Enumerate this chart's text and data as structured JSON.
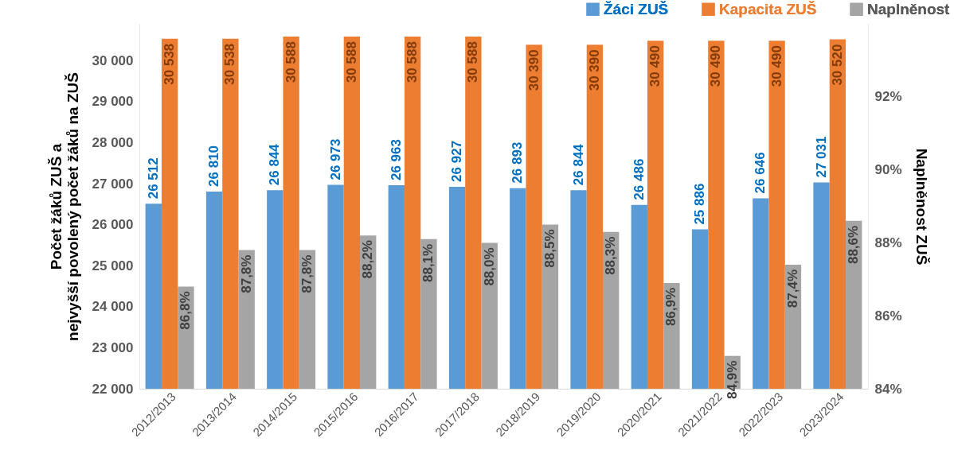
{
  "chart_data": {
    "type": "bar",
    "categories": [
      "2012/2013",
      "2013/2014",
      "2014/2015",
      "2015/2016",
      "2016/2017",
      "2017/2018",
      "2018/2019",
      "2019/2020",
      "2020/2021",
      "2021/2022",
      "2022/2023",
      "2023/2024"
    ],
    "series": [
      {
        "name": "Žáci ZUŠ",
        "color": "#5b9bd5",
        "values": [
          26512,
          26810,
          26844,
          26973,
          26963,
          26927,
          26893,
          26844,
          26486,
          25886,
          26646,
          27031
        ],
        "value_labels": [
          "26 512",
          "26 810",
          "26 844",
          "26 973",
          "26 963",
          "26 927",
          "26 893",
          "26 844",
          "26 486",
          "25 886",
          "26 646",
          "27 031"
        ]
      },
      {
        "name": "Kapacita ZUŠ",
        "color": "#ed7d31",
        "values": [
          30538,
          30538,
          30588,
          30588,
          30588,
          30588,
          30390,
          30390,
          30490,
          30490,
          30490,
          30520
        ],
        "value_labels": [
          "30 538",
          "30 538",
          "30 588",
          "30 588",
          "30 588",
          "30 588",
          "30 390",
          "30 390",
          "30 490",
          "30 490",
          "30 490",
          "30 520"
        ]
      },
      {
        "name": "Naplněnost",
        "color": "#a5a5a5",
        "axis": "y2",
        "values": [
          86.8,
          87.8,
          87.8,
          88.2,
          88.1,
          88.0,
          88.5,
          88.3,
          86.9,
          84.9,
          87.4,
          88.6
        ],
        "value_labels": [
          "86,8%",
          "87,8%",
          "87,8%",
          "88,2%",
          "88,1%",
          "88,0%",
          "88,5%",
          "88,3%",
          "86,9%",
          "84,9%",
          "87,4%",
          "88,6%"
        ]
      }
    ],
    "ylabel": "Počet žáků ZUŠ a nejvyšší povolený počet žáků na ZUŠ",
    "y2label": "Naplněnost ZUŠ",
    "ylim": [
      22000,
      30900
    ],
    "yticks": [
      {
        "value": 22000,
        "label": "22 000"
      },
      {
        "value": 23000,
        "label": "23 000"
      },
      {
        "value": 24000,
        "label": "24 000"
      },
      {
        "value": 25000,
        "label": "25 000"
      },
      {
        "value": 26000,
        "label": "26 000"
      },
      {
        "value": 27000,
        "label": "27 000"
      },
      {
        "value": 28000,
        "label": "28 000"
      },
      {
        "value": 29000,
        "label": "29 000"
      },
      {
        "value": 30000,
        "label": "30 000"
      }
    ],
    "y2lim": [
      84,
      94
    ],
    "y2ticks": [
      {
        "value": 84,
        "label": "84%"
      },
      {
        "value": 86,
        "label": "86%"
      },
      {
        "value": 88,
        "label": "88%"
      },
      {
        "value": 90,
        "label": "90%"
      },
      {
        "value": 92,
        "label": "92%"
      }
    ],
    "legend": "top right",
    "grid": false
  }
}
